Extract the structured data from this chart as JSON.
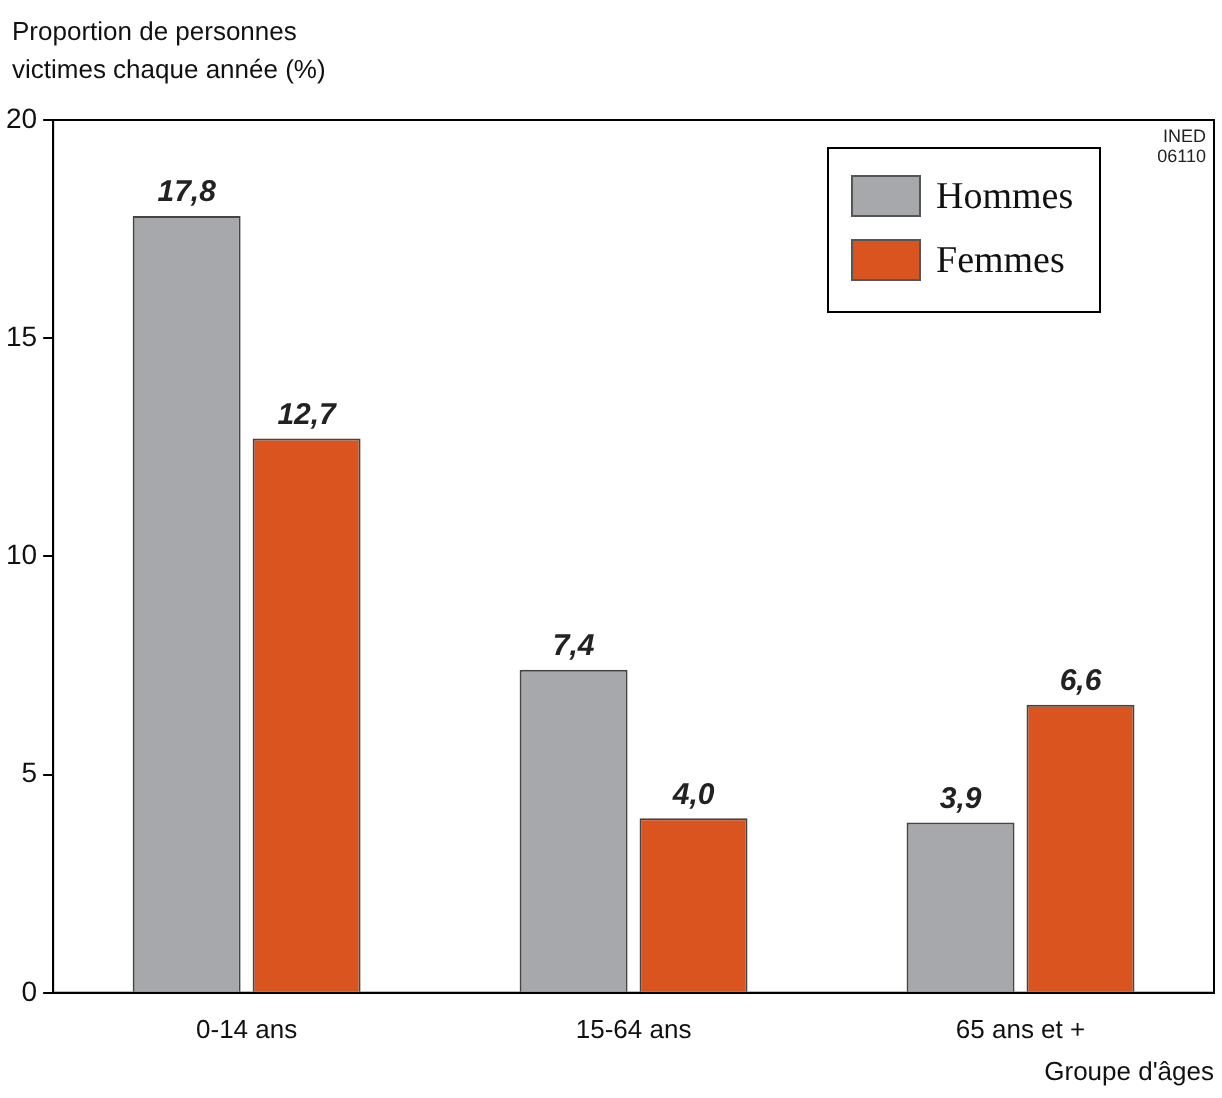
{
  "chart_data": {
    "type": "bar",
    "ylabel": "Proportion de personnes\nvictimes chaque année (%)",
    "xlabel": "Groupe d'âges",
    "categories": [
      "0-14 ans",
      "15-64 ans",
      "65 ans et +"
    ],
    "series": [
      {
        "name": "Hommes",
        "color": "#a7a8ac",
        "values": [
          17.8,
          7.4,
          3.9
        ],
        "value_labels": [
          "17,8",
          "7,4",
          "3,9"
        ]
      },
      {
        "name": "Femmes",
        "color": "#d9541e",
        "values": [
          12.7,
          4.0,
          6.6
        ],
        "value_labels": [
          "12,7",
          "4,0",
          "6,6"
        ]
      }
    ],
    "ylim": [
      0,
      20
    ],
    "yticks": [
      0,
      5,
      10,
      15,
      20
    ],
    "grid": false,
    "legend": "top right",
    "annotations": [
      "INED\n06110"
    ]
  }
}
